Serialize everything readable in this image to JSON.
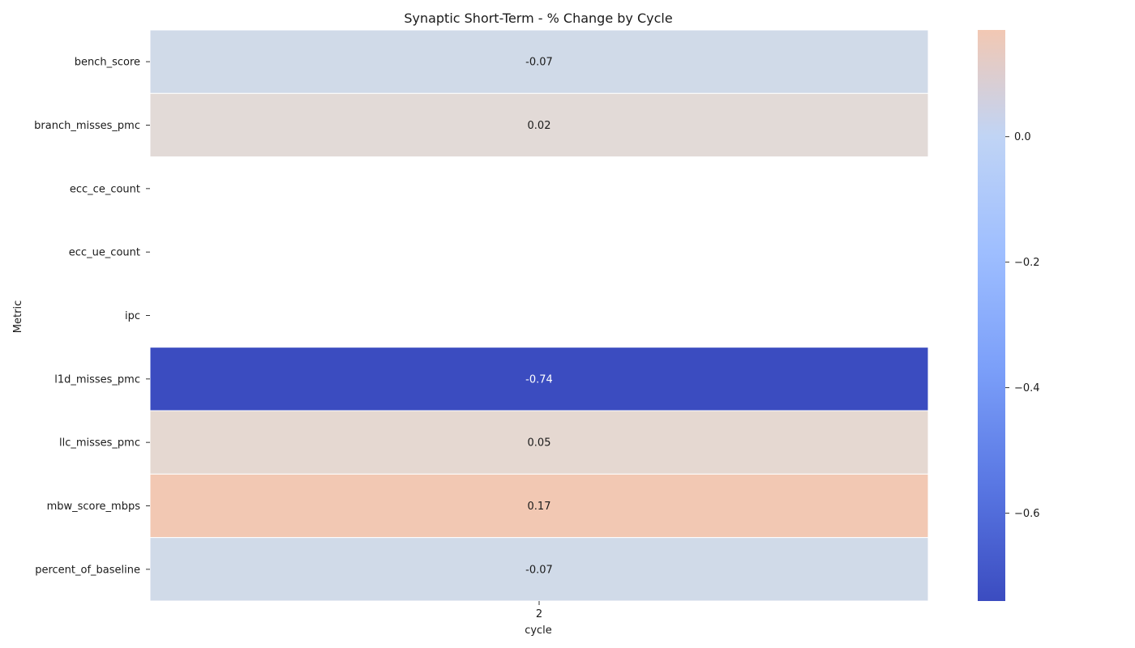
{
  "chart_data": {
    "type": "heatmap",
    "title": "Synaptic Short-Term - % Change by Cycle",
    "xlabel": "cycle",
    "ylabel": "Metric",
    "x_categories": [
      "2"
    ],
    "rows": [
      {
        "label": "bench_score",
        "value": -0.07,
        "annotation": "-0.07",
        "color": "#d0dae8"
      },
      {
        "label": "branch_misses_pmc",
        "value": 0.02,
        "annotation": "0.02",
        "color": "#e2dad7"
      },
      {
        "label": "ecc_ce_count",
        "value": null,
        "annotation": "",
        "color": null
      },
      {
        "label": "ecc_ue_count",
        "value": null,
        "annotation": "",
        "color": null
      },
      {
        "label": "ipc",
        "value": null,
        "annotation": "",
        "color": null
      },
      {
        "label": "l1d_misses_pmc",
        "value": -0.74,
        "annotation": "-0.74",
        "color": "#3b4cc0"
      },
      {
        "label": "llc_misses_pmc",
        "value": 0.05,
        "annotation": "0.05",
        "color": "#e5d8d1"
      },
      {
        "label": "mbw_score_mbps",
        "value": 0.17,
        "annotation": "0.17",
        "color": "#f2c8b3"
      },
      {
        "label": "percent_of_baseline",
        "value": -0.07,
        "annotation": "-0.07",
        "color": "#d0dae8"
      }
    ],
    "colorbar": {
      "cmap": "coolwarm",
      "vmin": -0.74,
      "vmax": 0.17,
      "ticks": [
        0.0,
        -0.2,
        -0.4,
        -0.6
      ],
      "tick_labels": [
        "0.0",
        "−0.2",
        "−0.4",
        "−0.6"
      ]
    }
  }
}
